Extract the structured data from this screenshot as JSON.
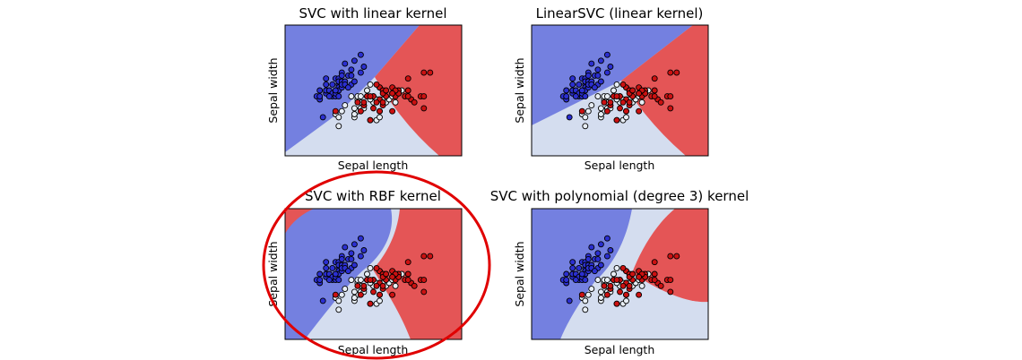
{
  "colors": {
    "class_0": "#7480e0",
    "class_1": "#d4ddef",
    "class_2": "#e45556",
    "point_0": "#2b2fd0",
    "point_1": "#e8eef5",
    "point_2": "#cc1111",
    "highlight": "#e00000"
  },
  "chart_data": [
    {
      "type": "scatter",
      "title": "SVC with linear kernel",
      "xlabel": "Sepal length",
      "ylabel": "Sepal width",
      "xticks": "none",
      "yticks": "none",
      "grid": false,
      "background": "decision regions (3 classes)"
    },
    {
      "type": "scatter",
      "title": "LinearSVC (linear kernel)",
      "xlabel": "Sepal length",
      "ylabel": "Sepal width",
      "xticks": "none",
      "yticks": "none",
      "grid": false,
      "background": "decision regions (3 classes)"
    },
    {
      "type": "scatter",
      "title": "SVC with RBF kernel",
      "xlabel": "Sepal length",
      "ylabel": "Sepal width",
      "xticks": "none",
      "yticks": "none",
      "grid": false,
      "highlighted": true,
      "background": "decision regions (3 classes)"
    },
    {
      "type": "scatter",
      "title": "SVC with polynomial (degree 3) kernel",
      "xlabel": "Sepal length",
      "ylabel": "Sepal width",
      "xticks": "none",
      "yticks": "none",
      "grid": false,
      "background": "decision regions (3 classes)"
    }
  ],
  "points": [
    [
      4.3,
      3.0,
      0
    ],
    [
      4.4,
      2.9,
      0
    ],
    [
      4.4,
      3.0,
      0
    ],
    [
      4.4,
      3.2,
      0
    ],
    [
      4.5,
      2.3,
      0
    ],
    [
      4.6,
      3.1,
      0
    ],
    [
      4.6,
      3.4,
      0
    ],
    [
      4.6,
      3.6,
      0
    ],
    [
      4.6,
      3.2,
      0
    ],
    [
      4.7,
      3.2,
      0
    ],
    [
      4.8,
      3.4,
      0
    ],
    [
      4.8,
      3.0,
      0
    ],
    [
      4.8,
      3.1,
      0
    ],
    [
      4.9,
      3.0,
      0
    ],
    [
      4.9,
      3.1,
      0
    ],
    [
      4.9,
      3.6,
      0
    ],
    [
      5.0,
      3.6,
      0
    ],
    [
      5.0,
      3.4,
      0
    ],
    [
      5.0,
      3.0,
      0
    ],
    [
      5.0,
      3.3,
      0
    ],
    [
      5.0,
      3.5,
      0
    ],
    [
      5.0,
      3.2,
      0
    ],
    [
      5.1,
      3.5,
      0
    ],
    [
      5.1,
      3.8,
      0
    ],
    [
      5.1,
      3.7,
      0
    ],
    [
      5.1,
      3.3,
      0
    ],
    [
      5.1,
      3.4,
      0
    ],
    [
      5.2,
      3.5,
      0
    ],
    [
      5.2,
      3.4,
      0
    ],
    [
      5.2,
      4.1,
      0
    ],
    [
      5.3,
      3.7,
      0
    ],
    [
      5.4,
      3.9,
      0
    ],
    [
      5.4,
      3.7,
      0
    ],
    [
      5.4,
      3.4,
      0
    ],
    [
      5.5,
      4.2,
      0
    ],
    [
      5.5,
      3.5,
      0
    ],
    [
      5.7,
      4.4,
      0
    ],
    [
      5.7,
      3.8,
      0
    ],
    [
      5.8,
      4.0,
      0
    ],
    [
      4.9,
      3.2,
      0
    ],
    [
      5.3,
      3.3,
      0
    ],
    [
      4.7,
      3.0,
      0
    ],
    [
      7.0,
      3.2,
      1
    ],
    [
      6.4,
      3.2,
      1
    ],
    [
      6.9,
      3.1,
      1
    ],
    [
      5.5,
      2.3,
      1
    ],
    [
      6.5,
      2.8,
      1
    ],
    [
      5.7,
      2.8,
      1
    ],
    [
      6.3,
      3.3,
      1
    ],
    [
      4.9,
      2.4,
      1
    ],
    [
      6.6,
      2.9,
      1
    ],
    [
      5.2,
      2.7,
      1
    ],
    [
      5.0,
      2.0,
      1
    ],
    [
      5.9,
      3.0,
      1
    ],
    [
      6.0,
      2.2,
      1
    ],
    [
      6.1,
      2.9,
      1
    ],
    [
      5.6,
      2.9,
      1
    ],
    [
      6.7,
      3.1,
      1
    ],
    [
      5.6,
      3.0,
      1
    ],
    [
      5.8,
      2.7,
      1
    ],
    [
      6.2,
      2.2,
      1
    ],
    [
      5.6,
      2.5,
      1
    ],
    [
      5.9,
      3.2,
      1
    ],
    [
      6.1,
      2.8,
      1
    ],
    [
      6.3,
      2.5,
      1
    ],
    [
      6.4,
      2.9,
      1
    ],
    [
      6.8,
      2.8,
      1
    ],
    [
      6.7,
      3.0,
      1
    ],
    [
      6.0,
      2.9,
      1
    ],
    [
      5.7,
      2.6,
      1
    ],
    [
      5.5,
      2.4,
      1
    ],
    [
      5.4,
      3.0,
      1
    ],
    [
      6.0,
      3.4,
      1
    ],
    [
      6.3,
      2.3,
      1
    ],
    [
      5.5,
      2.6,
      1
    ],
    [
      5.0,
      2.3,
      1
    ],
    [
      5.7,
      3.0,
      1
    ],
    [
      5.1,
      2.5,
      1
    ],
    [
      6.1,
      3.0,
      1
    ],
    [
      5.8,
      2.6,
      1
    ],
    [
      6.2,
      2.9,
      1
    ],
    [
      6.3,
      3.3,
      2
    ],
    [
      5.8,
      2.7,
      2
    ],
    [
      7.1,
      3.0,
      2
    ],
    [
      6.3,
      2.9,
      2
    ],
    [
      6.5,
      3.0,
      2
    ],
    [
      7.6,
      3.0,
      2
    ],
    [
      4.9,
      2.5,
      2
    ],
    [
      7.3,
      2.9,
      2
    ],
    [
      6.7,
      2.5,
      2
    ],
    [
      7.2,
      3.6,
      2
    ],
    [
      6.4,
      2.7,
      2
    ],
    [
      6.8,
      3.0,
      2
    ],
    [
      5.7,
      2.5,
      2
    ],
    [
      5.8,
      2.8,
      2
    ],
    [
      6.4,
      3.2,
      2
    ],
    [
      7.7,
      3.8,
      2
    ],
    [
      7.7,
      2.6,
      2
    ],
    [
      6.0,
      2.2,
      2
    ],
    [
      6.9,
      3.2,
      2
    ],
    [
      5.6,
      2.8,
      2
    ],
    [
      6.7,
      3.3,
      2
    ],
    [
      6.2,
      2.8,
      2
    ],
    [
      6.1,
      3.0,
      2
    ],
    [
      7.2,
      3.2,
      2
    ],
    [
      7.4,
      2.8,
      2
    ],
    [
      7.9,
      3.8,
      2
    ],
    [
      6.4,
      2.8,
      2
    ],
    [
      6.1,
      2.6,
      2
    ],
    [
      7.7,
      3.0,
      2
    ],
    [
      6.4,
      3.1,
      2
    ],
    [
      6.9,
      3.1,
      2
    ],
    [
      6.8,
      3.2,
      2
    ],
    [
      6.7,
      3.1,
      2
    ],
    [
      6.5,
      3.2,
      2
    ],
    [
      5.9,
      3.0,
      2
    ],
    [
      6.2,
      3.4,
      2
    ],
    [
      7.2,
      3.0,
      2
    ],
    [
      6.0,
      3.0,
      2
    ],
    [
      6.3,
      2.5,
      2
    ]
  ]
}
